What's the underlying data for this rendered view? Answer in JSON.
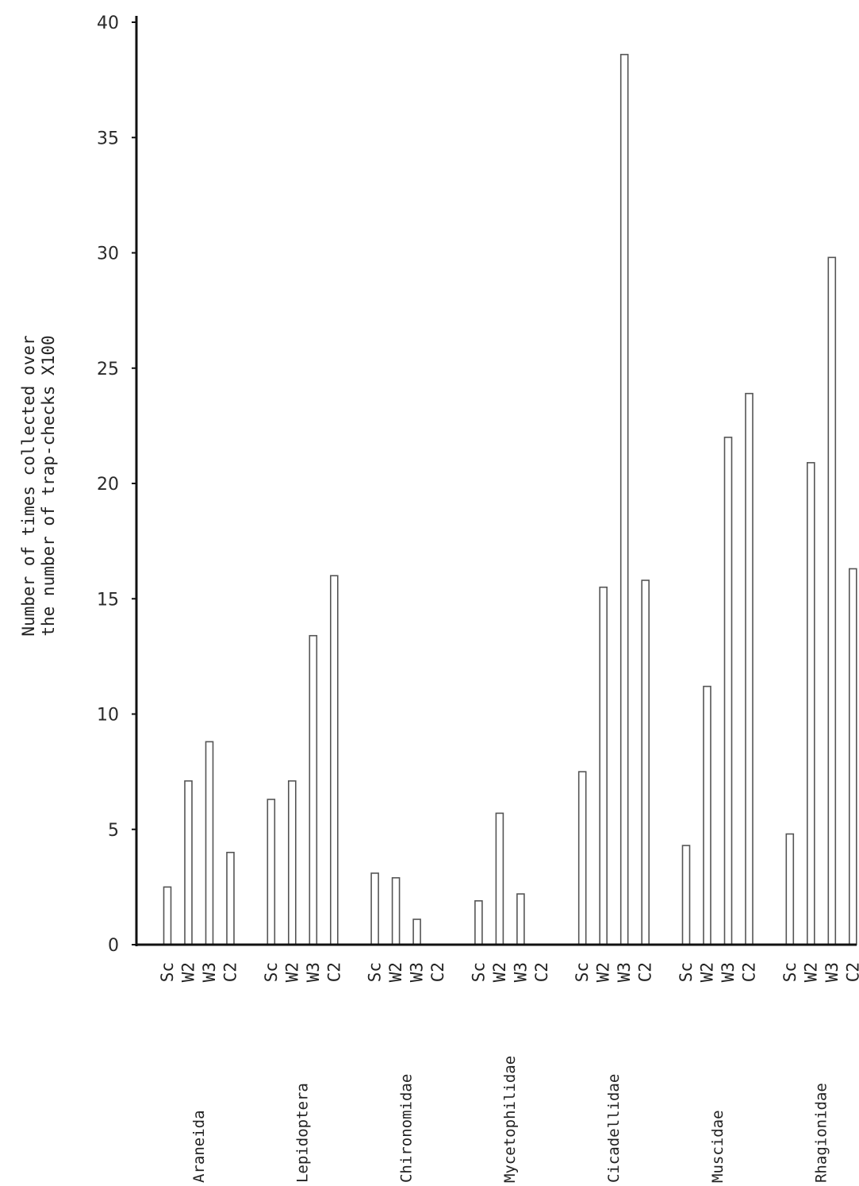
{
  "chart_data": {
    "type": "bar",
    "title": "",
    "xlabel": "",
    "ylabel": [
      "Number of times collected over",
      "the number of trap-checks X100"
    ],
    "ylim": [
      0,
      40
    ],
    "yticks": [
      "0",
      "5",
      "10",
      "15",
      "20",
      "25",
      "30",
      "35",
      "40"
    ],
    "grid": false,
    "legend": "none",
    "series_labels": [
      "Sc",
      "W2",
      "W3",
      "C2"
    ],
    "categories": [
      "Araneida",
      "Lepidoptera",
      "Chironomidae",
      "Mycetophilidae",
      "Cicadellidae",
      "Muscidae",
      "Rhagionidae"
    ],
    "groups": [
      {
        "name": "Araneida",
        "sites": [
          "Sc",
          "W2",
          "W3",
          "C2"
        ],
        "values": [
          2.5,
          7.1,
          8.8,
          4.0
        ]
      },
      {
        "name": "Lepidoptera",
        "sites": [
          "Sc",
          "W2",
          "W3",
          "C2"
        ],
        "values": [
          6.3,
          7.1,
          13.4,
          16.0
        ]
      },
      {
        "name": "Chironomidae",
        "sites": [
          "Sc",
          "W2",
          "W3",
          "C2"
        ],
        "values": [
          3.1,
          2.9,
          1.1,
          0
        ]
      },
      {
        "name": "Mycetophilidae",
        "sites": [
          "Sc",
          "W2",
          "W3",
          "C2"
        ],
        "values": [
          1.9,
          5.7,
          2.2,
          0
        ]
      },
      {
        "name": "Cicadellidae",
        "sites": [
          "Sc",
          "W2",
          "W3",
          "C2"
        ],
        "values": [
          7.5,
          15.5,
          38.6,
          15.8
        ]
      },
      {
        "name": "Muscidae",
        "sites": [
          "Sc",
          "W2",
          "W3",
          "C2"
        ],
        "values": [
          4.3,
          11.2,
          22.0,
          23.9
        ]
      },
      {
        "name": "Rhagionidae",
        "sites": [
          "Sc",
          "W2",
          "W3",
          "C2"
        ],
        "values": [
          4.8,
          20.9,
          29.8,
          16.3
        ]
      }
    ]
  }
}
